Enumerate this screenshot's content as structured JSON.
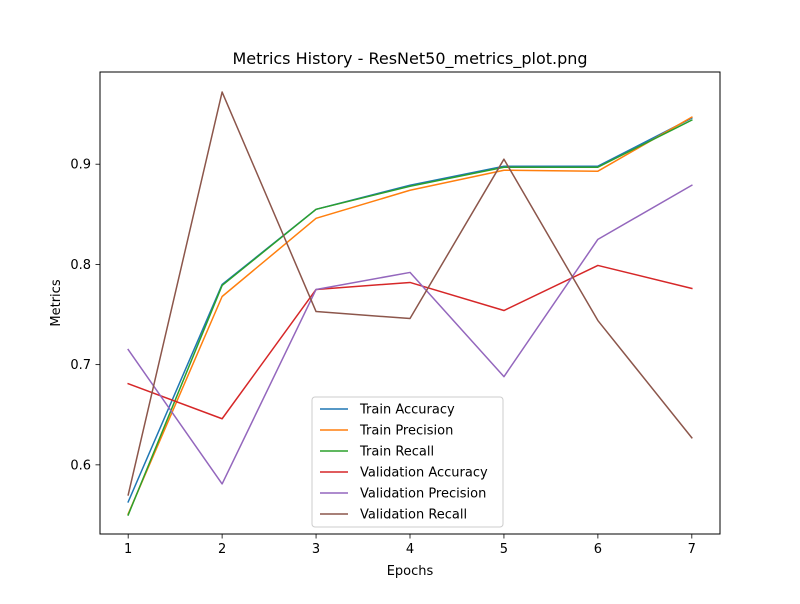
{
  "chart_data": {
    "type": "line",
    "title": "Metrics History - ResNet50_metrics_plot.png",
    "xlabel": "Epochs",
    "ylabel": "Metrics",
    "x": [
      1,
      2,
      3,
      4,
      5,
      6,
      7
    ],
    "xlim": [
      0.7,
      7.3
    ],
    "ylim": [
      0.531,
      0.992
    ],
    "x_ticks": [
      1,
      2,
      3,
      4,
      5,
      6,
      7
    ],
    "y_ticks": [
      0.6,
      0.7,
      0.8,
      0.9
    ],
    "grid": false,
    "legend_position": "lower center",
    "series": [
      {
        "name": "Train Accuracy",
        "color": "#1f77b4",
        "values": [
          0.563,
          0.78,
          0.855,
          0.879,
          0.898,
          0.898,
          0.946
        ]
      },
      {
        "name": "Train Precision",
        "color": "#ff7f0e",
        "values": [
          0.551,
          0.768,
          0.846,
          0.874,
          0.894,
          0.893,
          0.947
        ]
      },
      {
        "name": "Train Recall",
        "color": "#2ca02c",
        "values": [
          0.55,
          0.779,
          0.855,
          0.878,
          0.897,
          0.897,
          0.944
        ]
      },
      {
        "name": "Validation Accuracy",
        "color": "#d62728",
        "values": [
          0.681,
          0.646,
          0.775,
          0.782,
          0.754,
          0.799,
          0.776
        ]
      },
      {
        "name": "Validation Precision",
        "color": "#9467bd",
        "values": [
          0.715,
          0.581,
          0.775,
          0.792,
          0.688,
          0.825,
          0.879
        ]
      },
      {
        "name": "Validation Recall",
        "color": "#8c564b",
        "values": [
          0.57,
          0.972,
          0.753,
          0.746,
          0.905,
          0.744,
          0.627
        ]
      }
    ]
  }
}
